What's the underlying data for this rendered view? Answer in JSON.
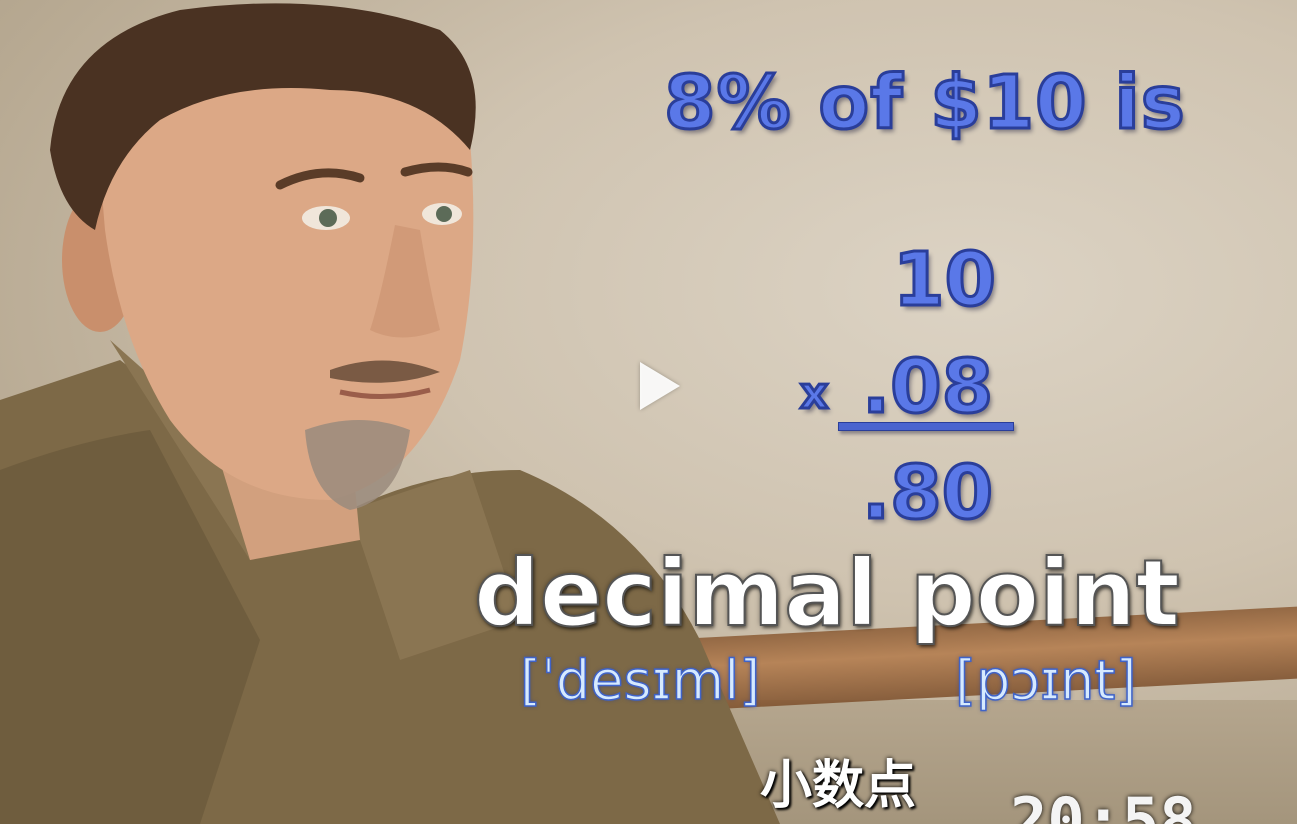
{
  "overlay": {
    "title": "8% of $10 is",
    "multiplicand": "10",
    "operator": "x",
    "multiplier": ".08",
    "result": ".80"
  },
  "vocab": {
    "word": "decimal point",
    "phonetic_1": "[ˈdesɪml]",
    "phonetic_2": "[pɔɪnt]",
    "translation": "小数点"
  },
  "video": {
    "timecode": "20:58",
    "play_icon": "play-icon"
  },
  "colors": {
    "math_blue": "#5a78e8",
    "math_outline": "#2a3e9a",
    "phonetic": "#d6eaff"
  }
}
